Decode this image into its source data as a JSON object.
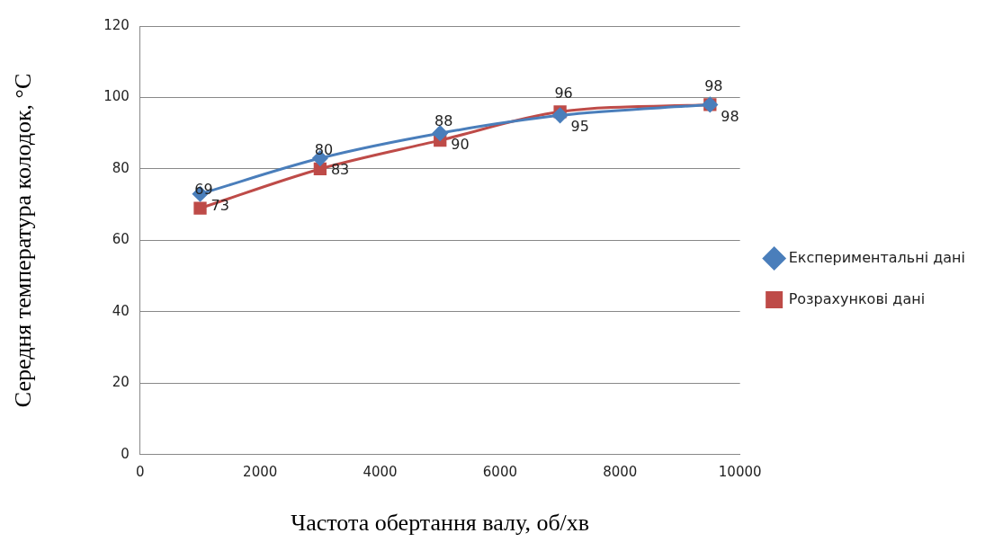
{
  "chart_data": {
    "type": "line",
    "xlabel": "Частота обертання валу, об/хв",
    "ylabel": "Середня температура колодок, °С",
    "x": [
      1000,
      3000,
      5000,
      7000,
      9500
    ],
    "series": [
      {
        "name": "Експериментальні дані",
        "color": "#4a7ebb",
        "marker": "diamond",
        "values": [
          73,
          83,
          90,
          95,
          98
        ]
      },
      {
        "name": "Розрахункові дані",
        "color": "#be4b48",
        "marker": "square",
        "values": [
          69,
          80,
          88,
          96,
          98
        ]
      }
    ],
    "xlim": [
      0,
      10000
    ],
    "xticks": [
      0,
      2000,
      4000,
      6000,
      8000,
      10000
    ],
    "ylim": [
      0,
      120
    ],
    "yticks": [
      0,
      20,
      40,
      60,
      80,
      100,
      120
    ],
    "grid": "y",
    "legend": "right",
    "data_labels": true
  }
}
